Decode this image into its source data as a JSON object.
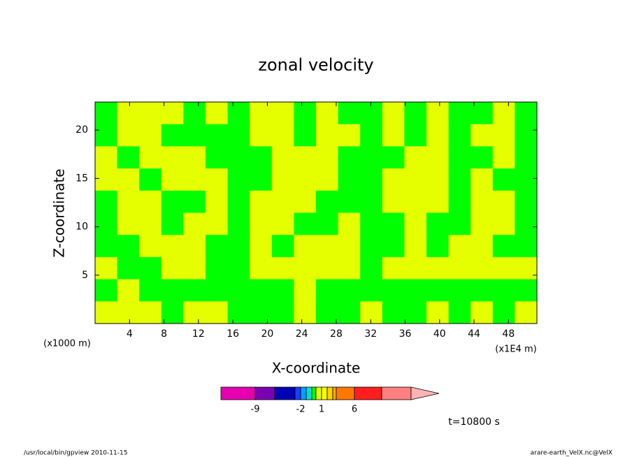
{
  "chart_data": {
    "type": "contour",
    "title": "zonal velocity",
    "xlabel": "X-coordinate",
    "ylabel": "Z-coordinate",
    "x_unit": "(x1E4 m)",
    "y_unit": "(x1000 m)",
    "time_label": "t=10800 s",
    "xlim": [
      0,
      51.3
    ],
    "ylim": [
      0,
      22.9
    ],
    "xticks": [
      4,
      8,
      12,
      16,
      20,
      24,
      28,
      32,
      36,
      40,
      44,
      48
    ],
    "yticks": [
      5,
      10,
      15,
      20
    ],
    "levels": [
      -9,
      -6,
      -3,
      -2,
      -1.5,
      -1,
      0,
      1,
      2,
      3,
      4,
      6,
      9,
      12
    ],
    "colors": [
      "#e600b0",
      "#7a00b4",
      "#0000b4",
      "#1e3cff",
      "#00a0ff",
      "#00dcdc",
      "#00ff00",
      "#e6ff00",
      "#ffff00",
      "#ffd200",
      "#ffaa00",
      "#ff7800",
      "#ff1e1e",
      "#ff8080",
      "#ffb4b4"
    ],
    "colorbar_ticks": [
      -9,
      -2,
      1,
      6
    ],
    "z": [
      [
        -0.5,
        0.5,
        0.5,
        0.5,
        -0.5,
        0.5,
        -0.5,
        0.5,
        0.5,
        -0.5,
        0.5,
        -0.5,
        -0.5,
        0.5,
        -0.5,
        0.5,
        -0.5,
        -0.5,
        0.5,
        -0.5
      ],
      [
        -0.5,
        0.5,
        0.5,
        -0.5,
        -0.5,
        -0.5,
        -0.5,
        0.5,
        0.5,
        -0.5,
        0.5,
        0.5,
        -0.5,
        0.5,
        -0.5,
        0.5,
        -0.5,
        0.5,
        0.5,
        -0.5
      ],
      [
        0.5,
        -0.5,
        0.5,
        0.5,
        0.5,
        -0.5,
        -0.5,
        -0.5,
        0.5,
        0.5,
        0.5,
        -0.5,
        -0.5,
        -0.5,
        0.5,
        0.5,
        -0.5,
        -0.5,
        0.5,
        -0.5
      ],
      [
        0.5,
        0.5,
        -0.5,
        0.5,
        0.5,
        0.5,
        -0.5,
        -0.5,
        0.5,
        0.5,
        0.5,
        -0.5,
        -0.5,
        0.5,
        0.5,
        0.5,
        -0.5,
        0.5,
        -0.5,
        -0.5
      ],
      [
        -0.5,
        0.5,
        0.5,
        -0.5,
        -0.5,
        0.5,
        -0.5,
        0.5,
        0.5,
        0.5,
        -0.5,
        -0.5,
        -0.5,
        0.5,
        0.5,
        0.5,
        -0.5,
        0.5,
        0.5,
        -0.5
      ],
      [
        -0.5,
        0.5,
        0.5,
        -0.5,
        0.5,
        0.5,
        -0.5,
        0.5,
        0.5,
        -0.5,
        -0.5,
        0.5,
        -0.5,
        -0.5,
        0.5,
        -0.5,
        -0.5,
        0.5,
        0.5,
        -0.5
      ],
      [
        -0.5,
        -0.5,
        0.5,
        0.5,
        0.5,
        -0.5,
        -0.5,
        0.5,
        -0.5,
        0.5,
        0.5,
        0.5,
        -0.5,
        -0.5,
        0.5,
        -0.5,
        0.5,
        0.5,
        -0.5,
        -0.5
      ],
      [
        0.5,
        -0.5,
        -0.5,
        0.5,
        0.5,
        -0.5,
        -0.5,
        0.5,
        0.5,
        0.5,
        0.5,
        0.5,
        -0.5,
        0.5,
        0.5,
        0.5,
        0.5,
        0.5,
        0.5,
        0.5
      ],
      [
        -0.5,
        0.5,
        -0.5,
        -0.5,
        -0.5,
        -0.5,
        -0.5,
        -0.5,
        -0.5,
        0.5,
        -0.5,
        -0.5,
        -0.5,
        -0.5,
        -0.5,
        -0.5,
        -0.5,
        -0.5,
        -0.5,
        -0.5
      ],
      [
        0.5,
        0.5,
        0.5,
        -0.5,
        0.5,
        0.5,
        -0.5,
        -0.5,
        -0.5,
        0.5,
        -0.5,
        -0.5,
        0.5,
        -0.5,
        -0.5,
        0.5,
        -0.5,
        0.5,
        -0.5,
        0.5
      ]
    ]
  },
  "footer": {
    "left": "/usr/local/bin/gpview  2010-11-15",
    "right": "arare-earth_VelX.nc@VelX"
  }
}
